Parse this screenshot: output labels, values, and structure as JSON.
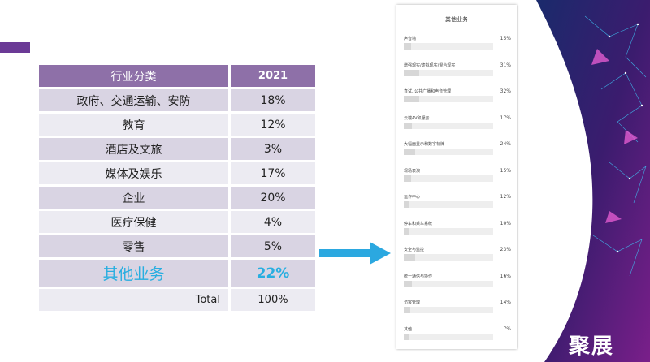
{
  "table": {
    "header": {
      "category": "行业分类",
      "year": "2021"
    },
    "rows": [
      {
        "category": "政府、交通运输、安防",
        "value": "18%"
      },
      {
        "category": "教育",
        "value": "12%"
      },
      {
        "category": "酒店及文旅",
        "value": "3%"
      },
      {
        "category": "媒体及娱乐",
        "value": "17%"
      },
      {
        "category": "企业",
        "value": "20%"
      },
      {
        "category": "医疗保健",
        "value": "4%"
      },
      {
        "category": "零售",
        "value": "5%"
      }
    ],
    "highlight": {
      "category": "其他业务",
      "value": "22%"
    },
    "total": {
      "label": "Total",
      "value": "100%"
    }
  },
  "survey": {
    "title": "其他业务",
    "items": [
      {
        "label": "声音墙",
        "pct": "15%",
        "fraction": 0.15
      },
      {
        "label": "增强现实/虚拟现实/混合现实",
        "pct": "31%",
        "fraction": 0.31
      },
      {
        "label": "直试, 公共广播和声音管理",
        "pct": "32%",
        "fraction": 0.32
      },
      {
        "label": "云端AV和服务",
        "pct": "17%",
        "fraction": 0.17
      },
      {
        "label": "大幅面显示和数字标牌",
        "pct": "24%",
        "fraction": 0.24
      },
      {
        "label": "现场表演",
        "pct": "15%",
        "fraction": 0.15
      },
      {
        "label": "运作中心",
        "pct": "12%",
        "fraction": 0.12
      },
      {
        "label": "停车和乘车系统",
        "pct": "10%",
        "fraction": 0.1
      },
      {
        "label": "安全与监控",
        "pct": "23%",
        "fraction": 0.23
      },
      {
        "label": "统一通信与协作",
        "pct": "16%",
        "fraction": 0.16
      },
      {
        "label": "访客管理",
        "pct": "14%",
        "fraction": 0.14
      },
      {
        "label": "其他",
        "pct": "7%",
        "fraction": 0.07
      }
    ]
  },
  "brand": "聚展",
  "colors": {
    "accent_purple": "#6b3a96",
    "header_purple": "#8e70a8",
    "highlight_blue": "#28aee0",
    "arrow_blue": "#2ba8e0"
  }
}
